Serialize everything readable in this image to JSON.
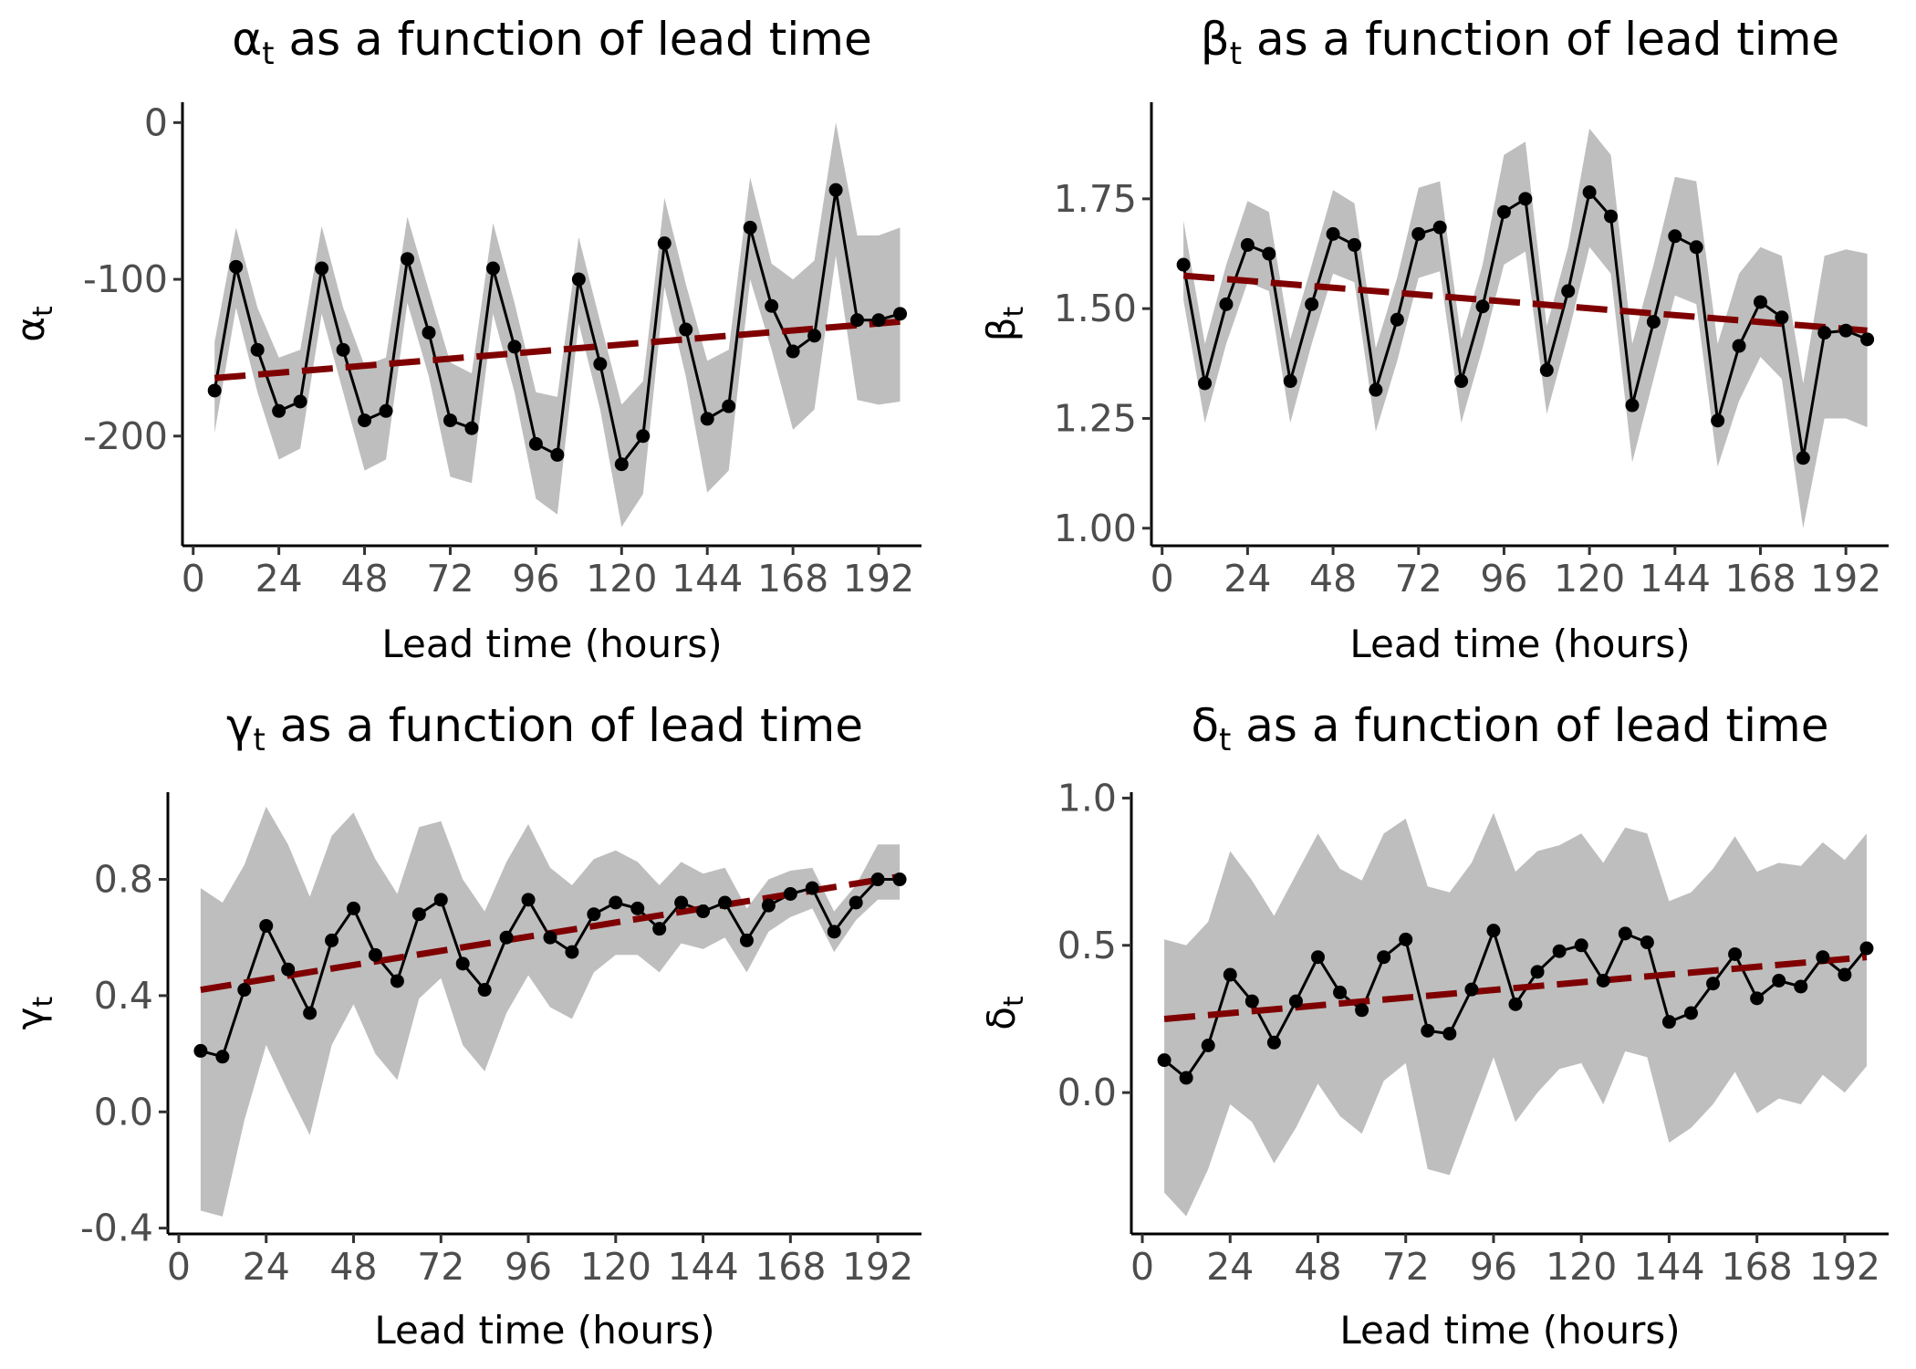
{
  "chart_data": [
    {
      "type": "line",
      "title_symbol": "α",
      "title_sub": "t",
      "title_rest": " as a function of lead time",
      "ylabel_symbol": "α",
      "ylabel_sub": "t",
      "xlabel": "Lead time (hours)",
      "xlim": [
        -3,
        204
      ],
      "ylim": [
        -270,
        13
      ],
      "x_ticks": [
        0,
        24,
        48,
        72,
        96,
        120,
        144,
        168,
        192
      ],
      "x_tick_labels": [
        "0",
        "24",
        "48",
        "72",
        "96",
        "120",
        "144",
        "168",
        "192"
      ],
      "y_ticks": [
        0,
        -100,
        -200
      ],
      "y_tick_labels": [
        "0",
        "-100",
        "-200"
      ],
      "x": [
        6,
        12,
        18,
        24,
        30,
        36,
        42,
        48,
        54,
        60,
        66,
        72,
        78,
        84,
        90,
        96,
        102,
        108,
        114,
        120,
        126,
        132,
        138,
        144,
        150,
        156,
        162,
        168,
        174,
        180,
        186,
        192,
        198
      ],
      "series": [
        {
          "role": "estimate",
          "values": [
            -171,
            -92,
            -145,
            -184,
            -178,
            -93,
            -145,
            -190,
            -184,
            -87,
            -134,
            -190,
            -195,
            -93,
            -143,
            -205,
            -212,
            -100,
            -154,
            -218,
            -200,
            -77,
            -132,
            -189,
            -181,
            -67,
            -117,
            -146,
            -136,
            -43,
            -126,
            -126,
            -122
          ]
        },
        {
          "role": "band_upper",
          "values": [
            -140,
            -67,
            -118,
            -150,
            -145,
            -66,
            -118,
            -155,
            -150,
            -60,
            -107,
            -153,
            -160,
            -64,
            -115,
            -172,
            -175,
            -73,
            -127,
            -180,
            -165,
            -48,
            -103,
            -152,
            -145,
            -35,
            -90,
            -100,
            -88,
            0,
            -72,
            -72,
            -67
          ]
        },
        {
          "role": "band_lower",
          "values": [
            -198,
            -118,
            -172,
            -215,
            -208,
            -122,
            -172,
            -222,
            -215,
            -115,
            -162,
            -226,
            -230,
            -122,
            -172,
            -240,
            -250,
            -128,
            -183,
            -258,
            -237,
            -105,
            -162,
            -236,
            -222,
            -100,
            -145,
            -196,
            -183,
            -85,
            -177,
            -180,
            -178
          ]
        },
        {
          "role": "trend",
          "x": [
            6,
            198
          ],
          "values": [
            -163,
            -127
          ]
        }
      ]
    },
    {
      "type": "line",
      "title_symbol": "β",
      "title_sub": "t",
      "title_rest": " as a function of lead time",
      "ylabel_symbol": "β",
      "ylabel_sub": "t",
      "xlabel": "Lead time (hours)",
      "xlim": [
        -3,
        204
      ],
      "ylim": [
        0.96,
        1.97
      ],
      "x_ticks": [
        0,
        24,
        48,
        72,
        96,
        120,
        144,
        168,
        192
      ],
      "x_tick_labels": [
        "0",
        "24",
        "48",
        "72",
        "96",
        "120",
        "144",
        "168",
        "192"
      ],
      "y_ticks": [
        1.0,
        1.25,
        1.5,
        1.75
      ],
      "y_tick_labels": [
        "1.00",
        "1.25",
        "1.50",
        "1.75"
      ],
      "x": [
        6,
        12,
        18,
        24,
        30,
        36,
        42,
        48,
        54,
        60,
        66,
        72,
        78,
        84,
        90,
        96,
        102,
        108,
        114,
        120,
        126,
        132,
        138,
        144,
        150,
        156,
        162,
        168,
        174,
        180,
        186,
        192,
        198
      ],
      "series": [
        {
          "role": "estimate",
          "values": [
            1.6,
            1.33,
            1.51,
            1.645,
            1.625,
            1.335,
            1.51,
            1.67,
            1.645,
            1.315,
            1.475,
            1.67,
            1.685,
            1.335,
            1.505,
            1.72,
            1.75,
            1.36,
            1.54,
            1.765,
            1.71,
            1.28,
            1.47,
            1.665,
            1.64,
            1.245,
            1.415,
            1.515,
            1.48,
            1.16,
            1.445,
            1.45,
            1.43
          ]
        },
        {
          "role": "band_upper",
          "values": [
            1.7,
            1.42,
            1.6,
            1.745,
            1.72,
            1.43,
            1.6,
            1.77,
            1.74,
            1.41,
            1.57,
            1.775,
            1.79,
            1.43,
            1.6,
            1.85,
            1.88,
            1.46,
            1.64,
            1.91,
            1.85,
            1.42,
            1.6,
            1.8,
            1.79,
            1.42,
            1.58,
            1.64,
            1.62,
            1.33,
            1.62,
            1.635,
            1.625
          ]
        },
        {
          "role": "band_lower",
          "values": [
            1.52,
            1.24,
            1.42,
            1.56,
            1.54,
            1.24,
            1.42,
            1.58,
            1.56,
            1.22,
            1.38,
            1.57,
            1.585,
            1.24,
            1.41,
            1.6,
            1.63,
            1.26,
            1.44,
            1.64,
            1.58,
            1.15,
            1.34,
            1.53,
            1.51,
            1.14,
            1.29,
            1.39,
            1.34,
            1.0,
            1.25,
            1.25,
            1.23
          ]
        },
        {
          "role": "trend",
          "x": [
            6,
            198
          ],
          "values": [
            1.575,
            1.45
          ]
        }
      ]
    },
    {
      "type": "line",
      "title_symbol": "γ",
      "title_sub": "t",
      "title_rest": " as a function of lead time",
      "ylabel_symbol": "γ",
      "ylabel_sub": "t",
      "xlabel": "Lead time (hours)",
      "xlim": [
        -3,
        204
      ],
      "ylim": [
        -0.42,
        1.1
      ],
      "x_ticks": [
        0,
        24,
        48,
        72,
        96,
        120,
        144,
        168,
        192
      ],
      "x_tick_labels": [
        "0",
        "24",
        "48",
        "72",
        "96",
        "120",
        "144",
        "168",
        "192"
      ],
      "y_ticks": [
        -0.4,
        0.0,
        0.4,
        0.8
      ],
      "y_tick_labels": [
        "-0.4",
        "0.0",
        "0.4",
        "0.8"
      ],
      "x": [
        6,
        12,
        18,
        24,
        30,
        36,
        42,
        48,
        54,
        60,
        66,
        72,
        78,
        84,
        90,
        96,
        102,
        108,
        114,
        120,
        126,
        132,
        138,
        144,
        150,
        156,
        162,
        168,
        174,
        180,
        186,
        192,
        198
      ],
      "series": [
        {
          "role": "estimate",
          "values": [
            0.21,
            0.19,
            0.42,
            0.64,
            0.49,
            0.34,
            0.59,
            0.7,
            0.54,
            0.45,
            0.68,
            0.73,
            0.51,
            0.42,
            0.6,
            0.73,
            0.6,
            0.55,
            0.68,
            0.72,
            0.7,
            0.63,
            0.72,
            0.69,
            0.72,
            0.59,
            0.71,
            0.75,
            0.77,
            0.62,
            0.72,
            0.8,
            0.8
          ]
        },
        {
          "role": "band_upper",
          "values": [
            0.77,
            0.72,
            0.85,
            1.05,
            0.92,
            0.74,
            0.95,
            1.03,
            0.87,
            0.75,
            0.98,
            1.0,
            0.8,
            0.69,
            0.86,
            0.99,
            0.84,
            0.78,
            0.87,
            0.9,
            0.86,
            0.78,
            0.86,
            0.82,
            0.84,
            0.7,
            0.8,
            0.83,
            0.84,
            0.69,
            0.78,
            0.92,
            0.92
          ]
        },
        {
          "role": "band_lower",
          "values": [
            -0.34,
            -0.36,
            -0.03,
            0.23,
            0.07,
            -0.08,
            0.23,
            0.37,
            0.2,
            0.11,
            0.39,
            0.46,
            0.23,
            0.14,
            0.34,
            0.47,
            0.36,
            0.32,
            0.48,
            0.54,
            0.54,
            0.48,
            0.58,
            0.56,
            0.6,
            0.48,
            0.62,
            0.67,
            0.7,
            0.55,
            0.66,
            0.73,
            0.73
          ]
        },
        {
          "role": "trend",
          "x": [
            6,
            198
          ],
          "values": [
            0.42,
            0.81
          ]
        }
      ]
    },
    {
      "type": "line",
      "title_symbol": "δ",
      "title_sub": "t",
      "title_rest": " as a function of lead time",
      "ylabel_symbol": "δ",
      "ylabel_sub": "t",
      "xlabel": "Lead time (hours)",
      "xlim": [
        -3,
        204
      ],
      "ylim": [
        -0.48,
        1.02
      ],
      "x_ticks": [
        0,
        24,
        48,
        72,
        96,
        120,
        144,
        168,
        192
      ],
      "x_tick_labels": [
        "0",
        "24",
        "48",
        "72",
        "96",
        "120",
        "144",
        "168",
        "192"
      ],
      "y_ticks": [
        0.0,
        0.5,
        1.0
      ],
      "y_tick_labels": [
        "0.0",
        "0.5",
        "1.0"
      ],
      "x": [
        6,
        12,
        18,
        24,
        30,
        36,
        42,
        48,
        54,
        60,
        66,
        72,
        78,
        84,
        90,
        96,
        102,
        108,
        114,
        120,
        126,
        132,
        138,
        144,
        150,
        156,
        162,
        168,
        174,
        180,
        186,
        192,
        198
      ],
      "series": [
        {
          "role": "estimate",
          "values": [
            0.11,
            0.05,
            0.16,
            0.4,
            0.31,
            0.17,
            0.31,
            0.46,
            0.34,
            0.28,
            0.46,
            0.52,
            0.21,
            0.2,
            0.35,
            0.55,
            0.3,
            0.41,
            0.48,
            0.5,
            0.38,
            0.54,
            0.51,
            0.24,
            0.27,
            0.37,
            0.47,
            0.32,
            0.38,
            0.36,
            0.46,
            0.4,
            0.49
          ]
        },
        {
          "role": "band_upper",
          "values": [
            0.52,
            0.5,
            0.58,
            0.82,
            0.72,
            0.6,
            0.74,
            0.88,
            0.76,
            0.72,
            0.88,
            0.93,
            0.7,
            0.68,
            0.78,
            0.95,
            0.75,
            0.82,
            0.84,
            0.88,
            0.78,
            0.9,
            0.88,
            0.65,
            0.68,
            0.76,
            0.87,
            0.75,
            0.78,
            0.77,
            0.85,
            0.79,
            0.88
          ]
        },
        {
          "role": "band_lower",
          "values": [
            -0.34,
            -0.42,
            -0.26,
            -0.04,
            -0.1,
            -0.24,
            -0.12,
            0.03,
            -0.08,
            -0.14,
            0.04,
            0.1,
            -0.26,
            -0.28,
            -0.08,
            0.12,
            -0.1,
            0.0,
            0.08,
            0.1,
            -0.04,
            0.14,
            0.12,
            -0.17,
            -0.12,
            -0.04,
            0.07,
            -0.07,
            -0.02,
            -0.04,
            0.06,
            0.0,
            0.09
          ]
        },
        {
          "role": "trend",
          "x": [
            6,
            198
          ],
          "values": [
            0.25,
            0.46
          ]
        }
      ]
    }
  ]
}
